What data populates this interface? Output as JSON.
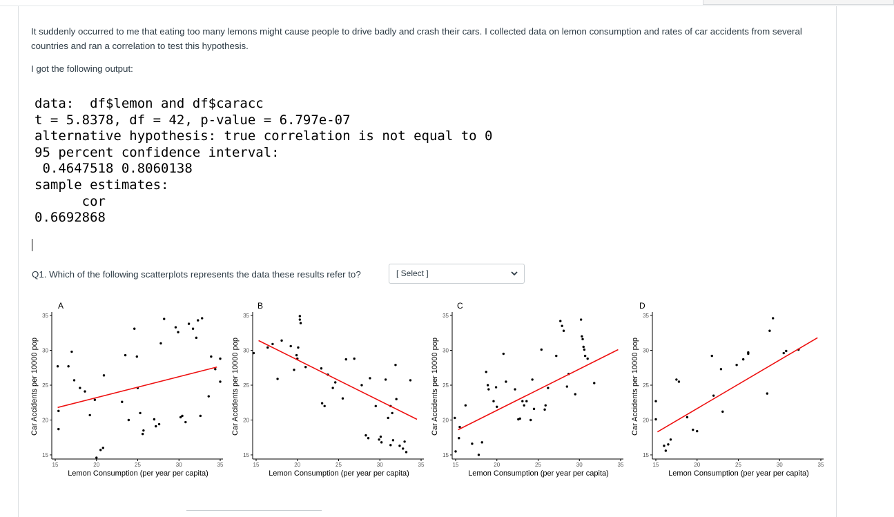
{
  "question": {
    "paragraph1": "It suddenly occurred to me that eating too many lemons might cause people to drive badly and crash their cars. I collected data on lemon consumption and rates of car accidents from several countries and ran a correlation to test this hypothesis.",
    "paragraph2": "I got the following output:",
    "q1_text": "Q1. Which of the following scatterplots represents the data these results refer to?"
  },
  "r_output": {
    "line1": "data:  df$lemon and df$caracc",
    "line2": "t = 5.8378, df = 42, p-value = 6.797e-07",
    "line3": "alternative hypothesis: true correlation is not equal to 0",
    "line4": "95 percent confidence interval:",
    "line5": " 0.4647518 0.8060138",
    "line6": "sample estimates:",
    "line7": "      cor",
    "line8": "0.6692868"
  },
  "select": {
    "selected": "[ Select ]",
    "icon": "chevron-down-icon"
  },
  "colors": {
    "fit_line": "#ee1111",
    "points": "#000000",
    "text": "#2d3b45"
  },
  "chart_data": [
    {
      "type": "scatter",
      "panel_label": "A",
      "xlabel": "Lemon Consumption (per year per capita)",
      "ylabel": "Car Accidents per 10000 pop",
      "xlim": [
        15,
        35
      ],
      "ylim": [
        15,
        35
      ],
      "xticks": [
        "15",
        "20",
        "25",
        "30",
        "35"
      ],
      "yticks": [
        "15",
        "20",
        "25",
        "30",
        "35"
      ],
      "fit_line": [
        [
          15.3,
          21.8
        ],
        [
          34.6,
          27.6
        ]
      ],
      "points": [
        [
          15.3,
          27.7
        ],
        [
          15.4,
          21.3
        ],
        [
          15.4,
          18.7
        ],
        [
          16.6,
          27.7
        ],
        [
          17,
          29.8
        ],
        [
          17.3,
          25.7
        ],
        [
          18,
          24.6
        ],
        [
          18.6,
          24.1
        ],
        [
          19.2,
          20.7
        ],
        [
          19.8,
          22.9
        ],
        [
          20,
          14.6
        ],
        [
          20.5,
          15.7
        ],
        [
          20.8,
          16.0
        ],
        [
          20.9,
          26.4
        ],
        [
          23.1,
          22.6
        ],
        [
          23.5,
          29.3
        ],
        [
          23.9,
          20.0
        ],
        [
          24.6,
          33.1
        ],
        [
          24.9,
          29.1
        ],
        [
          25.0,
          24.6
        ],
        [
          25.3,
          21.0
        ],
        [
          25.6,
          18.0
        ],
        [
          25.7,
          18.5
        ],
        [
          27.0,
          20.1
        ],
        [
          27.2,
          19.1
        ],
        [
          27.6,
          19.4
        ],
        [
          27.8,
          31.0
        ],
        [
          28.2,
          34.5
        ],
        [
          29.6,
          33.3
        ],
        [
          29.9,
          32.6
        ],
        [
          30.2,
          20.4
        ],
        [
          30.4,
          20.6
        ],
        [
          30.8,
          19.7
        ],
        [
          31.2,
          33.8
        ],
        [
          31.7,
          33.1
        ],
        [
          32.1,
          31.8
        ],
        [
          32.3,
          34.3
        ],
        [
          32.6,
          20.6
        ],
        [
          32.8,
          34.6
        ],
        [
          33.6,
          23.4
        ],
        [
          33.9,
          29.1
        ],
        [
          34.4,
          27.3
        ],
        [
          35.0,
          25.5
        ],
        [
          35.0,
          28.8
        ]
      ]
    },
    {
      "type": "scatter",
      "panel_label": "B",
      "xlabel": "Lemon Consumption (per year per capita)",
      "ylabel": "Car Accidents per 10000 pop",
      "xlim": [
        15,
        35
      ],
      "ylim": [
        15,
        35
      ],
      "xticks": [
        "15",
        "20",
        "25",
        "30",
        "35"
      ],
      "yticks": [
        "15",
        "20",
        "25",
        "30",
        "35"
      ],
      "fit_line": [
        [
          15.3,
          31.4
        ],
        [
          34.5,
          20.1
        ]
      ],
      "points": [
        [
          14.7,
          29.6
        ],
        [
          16.4,
          30.4
        ],
        [
          17.0,
          30.9
        ],
        [
          17.6,
          25.9
        ],
        [
          18.1,
          31.4
        ],
        [
          19.2,
          30.6
        ],
        [
          19.6,
          27.2
        ],
        [
          19.9,
          29.3
        ],
        [
          20.0,
          28.8
        ],
        [
          20.1,
          30.4
        ],
        [
          20.3,
          34.9
        ],
        [
          20.3,
          34.4
        ],
        [
          20.4,
          33.9
        ],
        [
          21.0,
          27.6
        ],
        [
          22.9,
          27.4
        ],
        [
          23.0,
          22.4
        ],
        [
          23.3,
          22.0
        ],
        [
          23.7,
          26.5
        ],
        [
          24.3,
          24.6
        ],
        [
          24.6,
          25.4
        ],
        [
          25.5,
          23.1
        ],
        [
          25.9,
          28.7
        ],
        [
          26.9,
          28.8
        ],
        [
          27.8,
          25.0
        ],
        [
          28.3,
          17.8
        ],
        [
          28.6,
          17.4
        ],
        [
          28.8,
          26.0
        ],
        [
          29.5,
          22.0
        ],
        [
          29.9,
          17.2
        ],
        [
          30.1,
          17.6
        ],
        [
          30.2,
          16.8
        ],
        [
          30.7,
          25.8
        ],
        [
          31.0,
          20.3
        ],
        [
          31.3,
          22.0
        ],
        [
          31.3,
          16.4
        ],
        [
          31.5,
          21.0
        ],
        [
          31.6,
          17.1
        ],
        [
          31.9,
          27.9
        ],
        [
          32.0,
          23.0
        ],
        [
          32.4,
          16.3
        ],
        [
          32.8,
          15.9
        ],
        [
          33.0,
          16.9
        ],
        [
          33.2,
          15.4
        ],
        [
          33.7,
          25.7
        ]
      ]
    },
    {
      "type": "scatter",
      "panel_label": "C",
      "xlabel": "Lemon Consumption (per year per capita)",
      "ylabel": "Car Accidents per 10000 pop",
      "xlim": [
        15,
        35
      ],
      "ylim": [
        15,
        35
      ],
      "xticks": [
        "15",
        "20",
        "25",
        "30",
        "35"
      ],
      "yticks": [
        "15",
        "20",
        "25",
        "30",
        "35"
      ],
      "fit_line": [
        [
          15.3,
          18.6
        ],
        [
          34.7,
          30.1
        ]
      ],
      "points": [
        [
          14.9,
          20.3
        ],
        [
          15.0,
          15.5
        ],
        [
          15.4,
          17.4
        ],
        [
          15.5,
          19.0
        ],
        [
          16.2,
          22.1
        ],
        [
          17.0,
          16.6
        ],
        [
          17.8,
          15.0
        ],
        [
          18.2,
          16.8
        ],
        [
          18.7,
          26.9
        ],
        [
          18.9,
          25.0
        ],
        [
          19.0,
          24.4
        ],
        [
          19.6,
          22.7
        ],
        [
          19.9,
          24.7
        ],
        [
          20.0,
          21.9
        ],
        [
          20.8,
          29.5
        ],
        [
          21.1,
          25.5
        ],
        [
          22.2,
          24.4
        ],
        [
          22.6,
          20.1
        ],
        [
          22.8,
          20.2
        ],
        [
          23.1,
          22.7
        ],
        [
          23.3,
          22.1
        ],
        [
          23.6,
          22.7
        ],
        [
          24.1,
          20.0
        ],
        [
          24.3,
          25.8
        ],
        [
          24.5,
          21.6
        ],
        [
          25.4,
          30.1
        ],
        [
          25.8,
          21.5
        ],
        [
          25.9,
          22.1
        ],
        [
          26.2,
          24.6
        ],
        [
          27.2,
          29.2
        ],
        [
          27.7,
          34.2
        ],
        [
          27.9,
          33.5
        ],
        [
          28.1,
          32.8
        ],
        [
          28.5,
          24.8
        ],
        [
          28.7,
          26.6
        ],
        [
          29.5,
          23.7
        ],
        [
          30.2,
          34.4
        ],
        [
          30.3,
          32.0
        ],
        [
          30.4,
          31.6
        ],
        [
          30.5,
          30.5
        ],
        [
          30.6,
          30.1
        ],
        [
          30.7,
          29.2
        ],
        [
          31.0,
          28.8
        ],
        [
          31.8,
          25.3
        ]
      ]
    },
    {
      "type": "scatter",
      "panel_label": "D",
      "xlabel": "Lemon Consumption (per year per capita)",
      "ylabel": "Car Accidents per 10000 pop",
      "xlim": [
        15,
        35
      ],
      "ylim": [
        15,
        35
      ],
      "xticks": [
        "15",
        "20",
        "25",
        "30",
        "35"
      ],
      "yticks": [
        "15",
        "20",
        "25",
        "30",
        "35"
      ],
      "fit_line": [
        [
          15.2,
          18.3
        ],
        [
          34.6,
          31.8
        ]
      ],
      "points": [
        [
          15.0,
          22.7
        ],
        [
          15.0,
          20.1
        ],
        [
          16.0,
          16.3
        ],
        [
          16.2,
          15.6
        ],
        [
          16.5,
          16.5
        ],
        [
          16.8,
          17.2
        ],
        [
          17.5,
          25.8
        ],
        [
          17.8,
          25.5
        ],
        [
          18.8,
          20.4
        ],
        [
          19.5,
          18.6
        ],
        [
          20.0,
          18.4
        ],
        [
          21.8,
          29.2
        ],
        [
          22.0,
          23.5
        ],
        [
          22.9,
          27.3
        ],
        [
          23.1,
          21.2
        ],
        [
          24.8,
          27.9
        ],
        [
          25.6,
          28.7
        ],
        [
          26.2,
          29.5
        ],
        [
          26.2,
          29.7
        ],
        [
          28.5,
          23.8
        ],
        [
          28.8,
          32.8
        ],
        [
          29.2,
          34.6
        ],
        [
          30.5,
          29.6
        ],
        [
          30.8,
          29.9
        ],
        [
          32.3,
          30.1
        ]
      ]
    }
  ]
}
